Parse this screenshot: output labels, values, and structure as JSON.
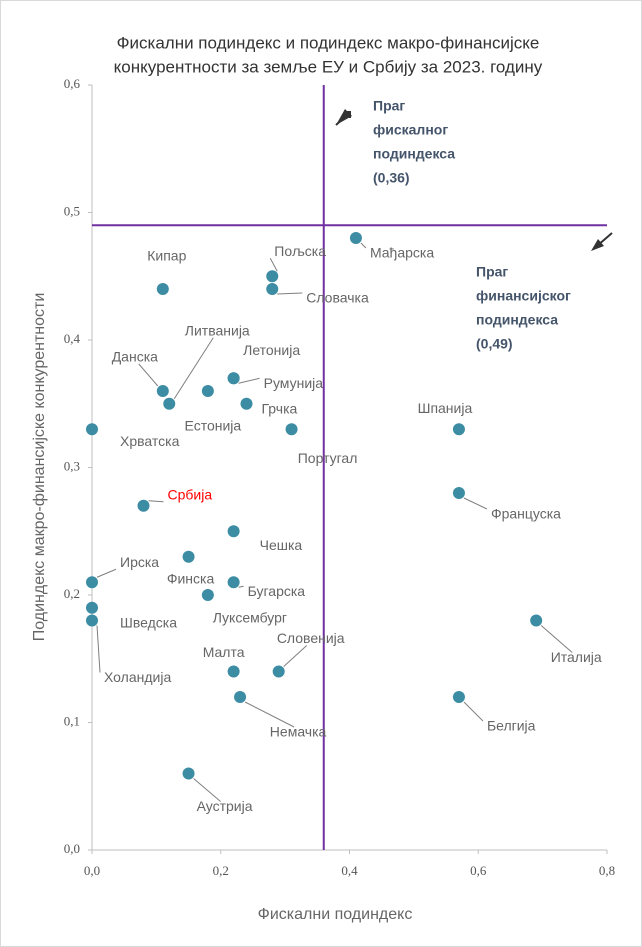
{
  "chart_data": {
    "type": "scatter",
    "title": [
      "Фискални подиндекс и подиндекс макро-финансијске",
      "конкурентности за земље ЕУ и Србију за  2023. годину"
    ],
    "x_label": "Фискални подиндекс",
    "y_label": "Подиндекс макро-финансијске конкурентности",
    "labels": [
      "Мађарска",
      "Пољска",
      "Словачка",
      "Кипар",
      "Данска",
      "Литванија",
      "Естонија",
      "Летонија",
      "Румунија",
      "Грчка",
      "Португал",
      "Хрватска",
      "Шпанија",
      "Француска",
      "Србија",
      "Чешка",
      "Финска",
      "Ирска",
      "Бугарска",
      "Луксембург",
      "Шведска",
      "Холандија",
      "Малта",
      "Словенија",
      "Немачка",
      "Италија",
      "Белгија",
      "Аустрија"
    ],
    "x": [
      0.41,
      0.28,
      0.28,
      0.11,
      0.11,
      0.12,
      0.18,
      0.22,
      0.22,
      0.24,
      0.31,
      0.0,
      0.57,
      0.57,
      0.08,
      0.22,
      0.15,
      0.0,
      0.22,
      0.18,
      0.0,
      0.0,
      0.22,
      0.29,
      0.23,
      0.69,
      0.57,
      0.15
    ],
    "y": [
      0.48,
      0.45,
      0.44,
      0.44,
      0.36,
      0.35,
      0.36,
      0.37,
      0.37,
      0.35,
      0.33,
      0.33,
      0.33,
      0.28,
      0.27,
      0.25,
      0.23,
      0.21,
      0.21,
      0.2,
      0.19,
      0.18,
      0.14,
      0.14,
      0.12,
      0.18,
      0.12,
      0.06
    ],
    "color": "#3c8ca3",
    "label_colors": [
      "#666",
      "#666",
      "#666",
      "#666",
      "#666",
      "#666",
      "#666",
      "#666",
      "#666",
      "#666",
      "#666",
      "#666",
      "#666",
      "#666",
      "#ff0000",
      "#666",
      "#666",
      "#666",
      "#666",
      "#666",
      "#666",
      "#666",
      "#666",
      "#666",
      "#666",
      "#666",
      "#666",
      "#666"
    ],
    "xlim": [
      0,
      0.8
    ],
    "ylim": [
      0,
      0.6
    ],
    "xticks": [
      {
        "value": 0,
        "label": "0,0"
      },
      {
        "value": 0.2,
        "label": "0,2"
      },
      {
        "value": 0.4,
        "label": "0,4"
      },
      {
        "value": 0.6,
        "label": "0,6"
      },
      {
        "value": 0.8,
        "label": "0,8"
      }
    ],
    "yticks": [
      {
        "value": 0,
        "label": "0,0"
      },
      {
        "value": 0.1,
        "label": "0,1"
      },
      {
        "value": 0.2,
        "label": "0,2"
      },
      {
        "value": 0.3,
        "label": "0,3"
      },
      {
        "value": 0.4,
        "label": "0,4"
      },
      {
        "value": 0.5,
        "label": "0,5"
      },
      {
        "value": 0.6,
        "label": "0,6"
      }
    ],
    "threshold_x": 0.36,
    "threshold_y": 0.49,
    "threshold_color": "#7030a0",
    "annotations": [
      [
        "Праг",
        "фискалног",
        "подиндекса",
        "(0,36)"
      ],
      [
        "Праг",
        "финансијског",
        "подиндекса",
        "(0,49)"
      ]
    ]
  }
}
